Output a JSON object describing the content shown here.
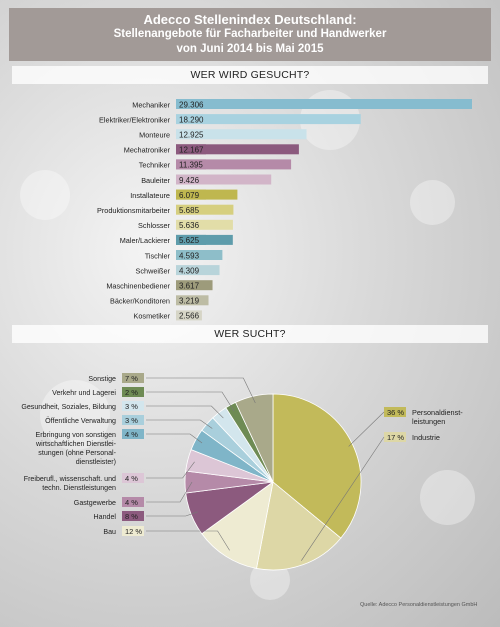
{
  "header": {
    "title": "Adecco Stellenindex Deutschland:",
    "subtitle1": "Stellenangebote für Facharbeiter und Handwerker",
    "subtitle2": "von Juni 2014 bis Mai 2015"
  },
  "section1_title": "WER WIRD GESUCHT?",
  "section2_title": "WER SUCHT?",
  "source": "Quelle: Adecco Personaldienstleistungen GmbH",
  "chart_data": [
    {
      "type": "bar",
      "orientation": "horizontal",
      "categories": [
        "Mechaniker",
        "Elektriker/Elektroniker",
        "Monteure",
        "Mechatroniker",
        "Techniker",
        "Bauleiter",
        "Installateure",
        "Produktionsmitarbeiter",
        "Schlosser",
        "Maler/Lackierer",
        "Tischler",
        "Schweißer",
        "Maschinenbediener",
        "Bäcker/Konditoren",
        "Kosmetiker"
      ],
      "values": [
        29306,
        18290,
        12925,
        12167,
        11395,
        9426,
        6079,
        5685,
        5636,
        5625,
        4593,
        4309,
        3617,
        3219,
        2566
      ],
      "labels": [
        "29.306",
        "18.290",
        "12.925",
        "12.167",
        "11.395",
        "9.426",
        "6.079",
        "5.685",
        "5.636",
        "5.625",
        "4.593",
        "4.309",
        "3.617",
        "3.219",
        "2.566"
      ],
      "colors": [
        "#86bccf",
        "#a8d2e0",
        "#c9e2ea",
        "#8c5a7e",
        "#b58aa8",
        "#d2b5c8",
        "#bfb74f",
        "#d6cf7f",
        "#e2dda8",
        "#5e9cab",
        "#8ebec9",
        "#b8d4da",
        "#9d9b7b",
        "#bdbca4",
        "#d6d5c6"
      ],
      "xlim": [
        0,
        29306
      ]
    },
    {
      "type": "pie",
      "categories": [
        "Personaldienst-leistungen",
        "Industrie",
        "Bau",
        "Handel",
        "Gastgewerbe",
        "Freiberufl., wissenschaft. und techn. Dienstleistungen",
        "Erbringung von sonstigen wirtschaftlichen Dienstleistungen (ohne Personal-dienstleister)",
        "Öffentliche Verwaltung",
        "Gesundheit, Soziales, Bildung",
        "Verkehr und Lagerei",
        "Sonstige"
      ],
      "values": [
        36,
        17,
        12,
        8,
        4,
        4,
        4,
        3,
        3,
        2,
        7
      ],
      "labels": [
        "36 %",
        "17 %",
        "12 %",
        "8 %",
        "4 %",
        "4 %",
        "4 %",
        "3 %",
        "3 %",
        "2 %",
        "7 %"
      ],
      "colors": [
        "#c2ba5a",
        "#ddd7a6",
        "#eeebd2",
        "#8c5a7e",
        "#b58aa8",
        "#dcc6d6",
        "#7fb5c8",
        "#a9cfdc",
        "#d3e6ed",
        "#6e8b54",
        "#a9a98a"
      ]
    }
  ]
}
